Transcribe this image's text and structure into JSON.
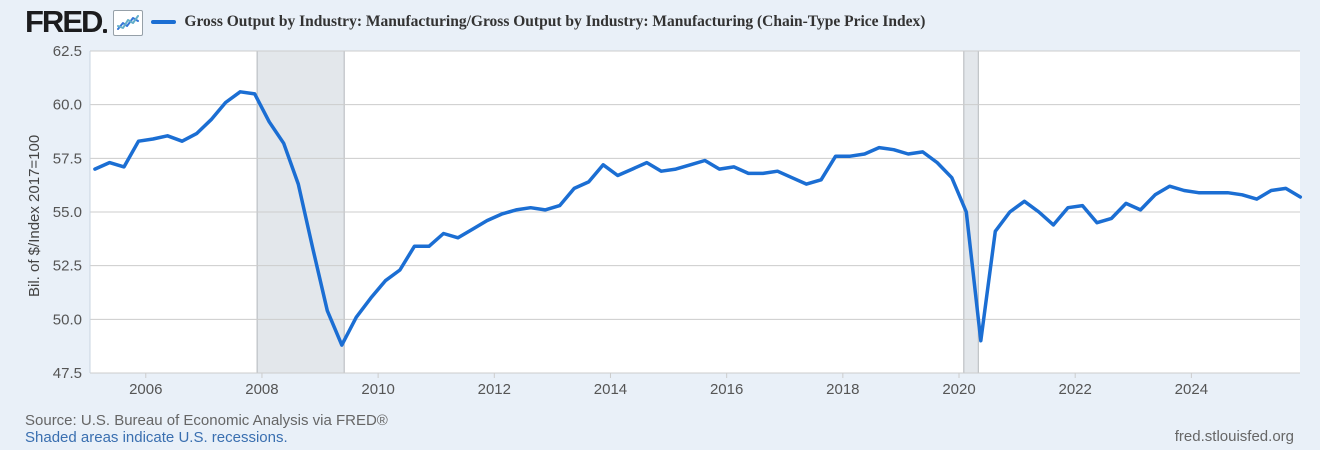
{
  "header": {
    "logo_text": "FRED"
  },
  "footer": {
    "source": "Source: U.S. Bureau of Economic Analysis via FRED®",
    "recession_note": "Shaded areas indicate U.S. recessions.",
    "site_link": "fred.stlouisfed.org"
  },
  "colors": {
    "page_bg": "#e9f0f8",
    "plot_bg": "#ffffff",
    "grid": "#cccccc",
    "axis_left": "#c9d5e0",
    "recession_fill": "#e3e7eb",
    "recession_edge": "#b3b7bb",
    "line": "#1b6ed3",
    "tick_text": "#555555",
    "legend_text": "#333333",
    "source_text": "#666666",
    "link_blue": "#3a6fb0",
    "logo_color": "#1c1c1e"
  },
  "chart_data": {
    "type": "line",
    "legend_label": "Gross Output by Industry: Manufacturing/Gross Output by Industry: Manufacturing (Chain-Type Price Index)",
    "ylabel": "Bil. of $/Index 2017=100",
    "ylim": [
      47.5,
      62.5
    ],
    "y_ticks": [
      47.5,
      50.0,
      52.5,
      55.0,
      57.5,
      60.0,
      62.5
    ],
    "xlim": [
      2005.04,
      2025.87
    ],
    "x_ticks": [
      2006,
      2008,
      2010,
      2012,
      2014,
      2016,
      2018,
      2020,
      2022,
      2024
    ],
    "frequency": "quarterly",
    "x_start": 2005.125,
    "x_step": 0.25,
    "grid": "horizontal",
    "legend_position": "top",
    "recessions": [
      [
        2007.917,
        2009.417
      ],
      [
        2020.083,
        2020.333
      ]
    ],
    "values": [
      57.0,
      57.3,
      57.1,
      58.3,
      58.4,
      58.55,
      58.3,
      58.65,
      59.3,
      60.1,
      60.6,
      60.5,
      59.2,
      58.2,
      56.3,
      53.3,
      50.4,
      48.8,
      50.1,
      51.0,
      51.8,
      52.3,
      53.4,
      53.4,
      54.0,
      53.8,
      54.2,
      54.6,
      54.9,
      55.1,
      55.2,
      55.1,
      55.3,
      56.1,
      56.4,
      57.2,
      56.7,
      57.0,
      57.3,
      56.9,
      57.0,
      57.2,
      57.4,
      57.0,
      57.1,
      56.8,
      56.8,
      56.9,
      56.6,
      56.3,
      56.5,
      57.6,
      57.6,
      57.7,
      58.0,
      57.9,
      57.7,
      57.8,
      57.3,
      56.6,
      55.0,
      49.0,
      54.1,
      55.0,
      55.5,
      55.0,
      54.4,
      55.2,
      55.3,
      54.5,
      54.7,
      55.4,
      55.1,
      55.8,
      56.2,
      56.0,
      55.9,
      55.9,
      55.9,
      55.8,
      55.6,
      56.0,
      56.1,
      55.7
    ]
  }
}
